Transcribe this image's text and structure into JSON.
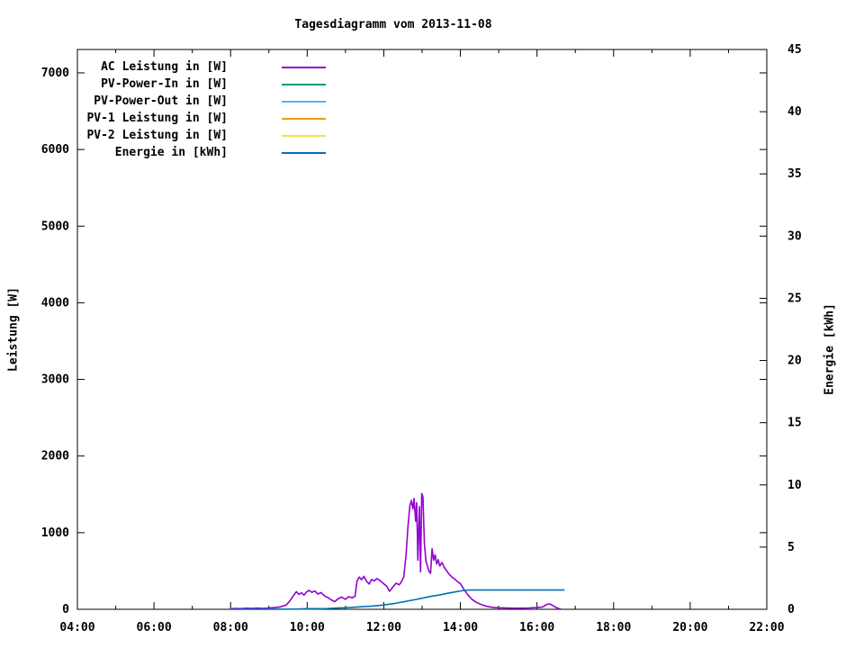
{
  "chart_data": {
    "type": "line",
    "title": "Tagesdiagramm vom 2013-11-08",
    "background": "#ffffff",
    "grid": false,
    "legend_position": "top-left-inside",
    "x_axis": {
      "label": "",
      "range_hours": [
        4,
        22
      ],
      "major_ticks": [
        {
          "hour": 4,
          "label": "04:00"
        },
        {
          "hour": 6,
          "label": "06:00"
        },
        {
          "hour": 8,
          "label": "08:00"
        },
        {
          "hour": 10,
          "label": "10:00"
        },
        {
          "hour": 12,
          "label": "12:00"
        },
        {
          "hour": 14,
          "label": "14:00"
        },
        {
          "hour": 16,
          "label": "16:00"
        },
        {
          "hour": 18,
          "label": "18:00"
        },
        {
          "hour": 20,
          "label": "20:00"
        },
        {
          "hour": 22,
          "label": "22:00"
        }
      ],
      "minor_tick_hours": [
        5,
        7,
        9,
        11,
        13,
        15,
        17,
        19,
        21
      ]
    },
    "y1_axis": {
      "label": "Leistung [W]",
      "range": [
        0,
        7305
      ],
      "tick_values": [
        0,
        1000,
        2000,
        3000,
        4000,
        5000,
        6000,
        7000
      ]
    },
    "y2_axis": {
      "label": "Energie [kWh]",
      "range": [
        0,
        45
      ],
      "tick_values": [
        0,
        5,
        10,
        15,
        20,
        25,
        30,
        35,
        40,
        45
      ]
    },
    "series": [
      {
        "name": "AC Leistung in [W]",
        "color": "#9400d3",
        "axis": "y1",
        "points": [
          [
            8.0,
            5
          ],
          [
            8.1,
            12
          ],
          [
            8.25,
            8
          ],
          [
            8.4,
            14
          ],
          [
            8.55,
            10
          ],
          [
            8.7,
            15
          ],
          [
            8.85,
            12
          ],
          [
            9.0,
            18
          ],
          [
            9.15,
            22
          ],
          [
            9.3,
            32
          ],
          [
            9.45,
            55
          ],
          [
            9.55,
            110
          ],
          [
            9.65,
            185
          ],
          [
            9.72,
            230
          ],
          [
            9.78,
            195
          ],
          [
            9.85,
            215
          ],
          [
            9.92,
            185
          ],
          [
            9.98,
            225
          ],
          [
            10.05,
            248
          ],
          [
            10.12,
            222
          ],
          [
            10.2,
            238
          ],
          [
            10.28,
            200
          ],
          [
            10.36,
            218
          ],
          [
            10.45,
            175
          ],
          [
            10.55,
            150
          ],
          [
            10.62,
            125
          ],
          [
            10.72,
            100
          ],
          [
            10.8,
            135
          ],
          [
            10.9,
            160
          ],
          [
            11.0,
            130
          ],
          [
            11.08,
            165
          ],
          [
            11.18,
            150
          ],
          [
            11.25,
            170
          ],
          [
            11.3,
            370
          ],
          [
            11.36,
            420
          ],
          [
            11.42,
            385
          ],
          [
            11.48,
            430
          ],
          [
            11.55,
            365
          ],
          [
            11.62,
            330
          ],
          [
            11.68,
            390
          ],
          [
            11.75,
            370
          ],
          [
            11.82,
            400
          ],
          [
            11.9,
            375
          ],
          [
            11.98,
            340
          ],
          [
            12.08,
            300
          ],
          [
            12.15,
            235
          ],
          [
            12.25,
            300
          ],
          [
            12.32,
            340
          ],
          [
            12.4,
            320
          ],
          [
            12.45,
            350
          ],
          [
            12.52,
            420
          ],
          [
            12.58,
            700
          ],
          [
            12.63,
            1080
          ],
          [
            12.68,
            1350
          ],
          [
            12.72,
            1420
          ],
          [
            12.76,
            1310
          ],
          [
            12.79,
            1445
          ],
          [
            12.83,
            1150
          ],
          [
            12.86,
            1390
          ],
          [
            12.89,
            640
          ],
          [
            12.93,
            1340
          ],
          [
            12.96,
            490
          ],
          [
            12.99,
            1510
          ],
          [
            13.02,
            1470
          ],
          [
            13.06,
            850
          ],
          [
            13.1,
            630
          ],
          [
            13.14,
            560
          ],
          [
            13.18,
            495
          ],
          [
            13.22,
            470
          ],
          [
            13.26,
            790
          ],
          [
            13.3,
            640
          ],
          [
            13.34,
            710
          ],
          [
            13.38,
            590
          ],
          [
            13.42,
            650
          ],
          [
            13.46,
            565
          ],
          [
            13.52,
            610
          ],
          [
            13.58,
            545
          ],
          [
            13.64,
            505
          ],
          [
            13.7,
            460
          ],
          [
            13.78,
            420
          ],
          [
            13.86,
            390
          ],
          [
            13.94,
            355
          ],
          [
            14.0,
            335
          ],
          [
            14.1,
            255
          ],
          [
            14.2,
            185
          ],
          [
            14.3,
            130
          ],
          [
            14.42,
            90
          ],
          [
            14.55,
            60
          ],
          [
            14.7,
            38
          ],
          [
            14.85,
            25
          ],
          [
            15.0,
            20
          ],
          [
            15.2,
            16
          ],
          [
            15.5,
            14
          ],
          [
            15.8,
            18
          ],
          [
            16.0,
            22
          ],
          [
            16.15,
            30
          ],
          [
            16.25,
            62
          ],
          [
            16.33,
            70
          ],
          [
            16.4,
            52
          ],
          [
            16.47,
            30
          ],
          [
            16.55,
            12
          ],
          [
            16.62,
            5
          ]
        ]
      },
      {
        "name": "PV-Power-In in [W]",
        "color": "#009e73",
        "axis": "y1",
        "points": [
          [
            9.8,
            4
          ],
          [
            9.95,
            7
          ],
          [
            10.15,
            9
          ],
          [
            10.4,
            6
          ]
        ]
      },
      {
        "name": "PV-Power-Out in [W]",
        "color": "#56b4e9",
        "axis": "y1",
        "points": []
      },
      {
        "name": "PV-1 Leistung in [W]",
        "color": "#e69f00",
        "axis": "y1",
        "points": []
      },
      {
        "name": "PV-2 Leistung in [W]",
        "color": "#f0e442",
        "axis": "y1",
        "points": []
      },
      {
        "name": "Energie in [kWh]",
        "color": "#0072b2",
        "axis": "y2",
        "points": [
          [
            8.0,
            0
          ],
          [
            9.0,
            0.01
          ],
          [
            9.87,
            0.02
          ],
          [
            10.2,
            0.04
          ],
          [
            10.5,
            0.06
          ],
          [
            10.8,
            0.1
          ],
          [
            11.1,
            0.14
          ],
          [
            11.4,
            0.2
          ],
          [
            11.7,
            0.26
          ],
          [
            11.9,
            0.31
          ],
          [
            12.1,
            0.39
          ],
          [
            12.3,
            0.48
          ],
          [
            12.56,
            0.63
          ],
          [
            12.8,
            0.77
          ],
          [
            13.0,
            0.89
          ],
          [
            13.2,
            1.03
          ],
          [
            13.4,
            1.13
          ],
          [
            13.5,
            1.18
          ],
          [
            13.65,
            1.28
          ],
          [
            13.8,
            1.36
          ],
          [
            13.95,
            1.45
          ],
          [
            14.1,
            1.52
          ],
          [
            14.25,
            1.55
          ],
          [
            16.72,
            1.55
          ]
        ]
      }
    ]
  }
}
